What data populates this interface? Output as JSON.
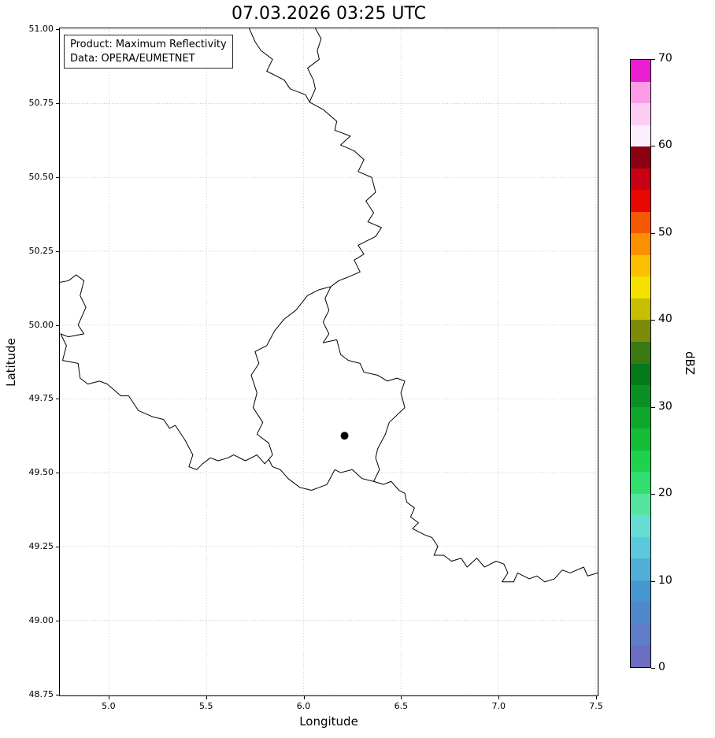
{
  "title": "07.03.2026 03:25 UTC",
  "annotation": {
    "line1": "Product: Maximum Reflectivity",
    "line2": "Data: OPERA/EUMETNET"
  },
  "chart_data": {
    "type": "map",
    "title": "07.03.2026 03:25 UTC",
    "xlabel": "Longitude",
    "ylabel": "Latitude",
    "xlim": [
      4.746,
      7.512
    ],
    "ylim": [
      48.745,
      51.005
    ],
    "grid": true,
    "xticks": [
      5.0,
      5.5,
      6.0,
      6.5,
      7.0,
      7.5
    ],
    "xtick_labels": [
      "5.0",
      "5.5",
      "6.0",
      "6.5",
      "7.0",
      "7.5"
    ],
    "yticks": [
      48.75,
      49.0,
      49.25,
      49.5,
      49.75,
      50.0,
      50.25,
      50.5,
      50.75,
      51.0
    ],
    "ytick_labels": [
      "48.75",
      "49.00",
      "49.25",
      "49.50",
      "49.75",
      "50.00",
      "50.25",
      "50.50",
      "50.75",
      "51.00"
    ],
    "marker": {
      "lon": 6.21,
      "lat": 49.625,
      "color": "#000000"
    },
    "border_color": "#000000",
    "borders": [
      {
        "name": "nl-be",
        "points": [
          [
            5.72,
            51.005
          ],
          [
            5.75,
            50.96
          ],
          [
            5.78,
            50.93
          ],
          [
            5.84,
            50.9
          ],
          [
            5.81,
            50.86
          ],
          [
            5.9,
            50.83
          ],
          [
            5.93,
            50.8
          ],
          [
            6.01,
            50.78
          ],
          [
            6.03,
            50.755
          ]
        ]
      },
      {
        "name": "nl-de",
        "points": [
          [
            6.03,
            50.755
          ],
          [
            6.06,
            50.8
          ],
          [
            6.05,
            50.83
          ],
          [
            6.02,
            50.87
          ],
          [
            6.08,
            50.9
          ],
          [
            6.07,
            50.93
          ],
          [
            6.09,
            50.97
          ],
          [
            6.06,
            51.005
          ]
        ]
      },
      {
        "name": "be-de",
        "points": [
          [
            6.03,
            50.755
          ],
          [
            6.1,
            50.73
          ],
          [
            6.17,
            50.69
          ],
          [
            6.16,
            50.66
          ],
          [
            6.24,
            50.64
          ],
          [
            6.19,
            50.61
          ],
          [
            6.26,
            50.59
          ],
          [
            6.31,
            50.56
          ],
          [
            6.28,
            50.52
          ],
          [
            6.35,
            50.5
          ],
          [
            6.37,
            50.45
          ],
          [
            6.32,
            50.42
          ],
          [
            6.36,
            50.38
          ],
          [
            6.33,
            50.35
          ],
          [
            6.4,
            50.33
          ],
          [
            6.37,
            50.3
          ],
          [
            6.28,
            50.27
          ],
          [
            6.31,
            50.24
          ],
          [
            6.26,
            50.22
          ],
          [
            6.29,
            50.18
          ],
          [
            6.22,
            50.16
          ],
          [
            6.18,
            50.15
          ],
          [
            6.14,
            50.13
          ]
        ]
      },
      {
        "name": "luxembourg",
        "points": [
          [
            6.14,
            50.13
          ],
          [
            6.11,
            50.09
          ],
          [
            6.13,
            50.05
          ],
          [
            6.1,
            50.01
          ],
          [
            6.13,
            49.97
          ],
          [
            6.1,
            49.94
          ],
          [
            6.17,
            49.95
          ],
          [
            6.19,
            49.9
          ],
          [
            6.23,
            49.88
          ],
          [
            6.29,
            49.87
          ],
          [
            6.31,
            49.84
          ],
          [
            6.38,
            49.83
          ],
          [
            6.43,
            49.81
          ],
          [
            6.48,
            49.82
          ],
          [
            6.52,
            49.81
          ],
          [
            6.5,
            49.77
          ],
          [
            6.52,
            49.72
          ],
          [
            6.44,
            49.67
          ],
          [
            6.42,
            49.63
          ],
          [
            6.38,
            49.58
          ],
          [
            6.37,
            49.55
          ],
          [
            6.39,
            49.51
          ],
          [
            6.36,
            49.47
          ],
          [
            6.3,
            49.48
          ],
          [
            6.25,
            49.51
          ],
          [
            6.19,
            49.5
          ],
          [
            6.16,
            49.51
          ],
          [
            6.12,
            49.46
          ],
          [
            6.08,
            49.45
          ],
          [
            6.04,
            49.44
          ],
          [
            5.98,
            49.45
          ],
          [
            5.92,
            49.48
          ],
          [
            5.88,
            49.51
          ],
          [
            5.84,
            49.52
          ],
          [
            5.82,
            49.545
          ],
          [
            5.84,
            49.56
          ],
          [
            5.82,
            49.6
          ],
          [
            5.76,
            49.63
          ],
          [
            5.79,
            49.67
          ],
          [
            5.74,
            49.72
          ],
          [
            5.76,
            49.77
          ],
          [
            5.73,
            49.83
          ],
          [
            5.77,
            49.87
          ],
          [
            5.75,
            49.91
          ],
          [
            5.81,
            49.93
          ],
          [
            5.85,
            49.98
          ],
          [
            5.9,
            50.02
          ],
          [
            5.96,
            50.05
          ],
          [
            6.02,
            50.1
          ],
          [
            6.08,
            50.12
          ],
          [
            6.14,
            50.13
          ]
        ]
      },
      {
        "name": "be-fr",
        "points": [
          [
            4.746,
            50.145
          ],
          [
            4.79,
            50.15
          ],
          [
            4.83,
            50.17
          ],
          [
            4.87,
            50.15
          ],
          [
            4.85,
            50.1
          ],
          [
            4.88,
            50.06
          ],
          [
            4.84,
            50.0
          ],
          [
            4.87,
            49.97
          ],
          [
            4.79,
            49.96
          ],
          [
            4.75,
            49.97
          ],
          [
            4.78,
            49.93
          ],
          [
            4.76,
            49.88
          ],
          [
            4.84,
            49.87
          ],
          [
            4.85,
            49.82
          ],
          [
            4.89,
            49.8
          ],
          [
            4.95,
            49.81
          ],
          [
            4.99,
            49.8
          ],
          [
            5.06,
            49.76
          ],
          [
            5.1,
            49.76
          ],
          [
            5.15,
            49.71
          ],
          [
            5.22,
            49.69
          ],
          [
            5.28,
            49.68
          ],
          [
            5.31,
            49.65
          ],
          [
            5.34,
            49.66
          ],
          [
            5.39,
            49.61
          ],
          [
            5.43,
            49.56
          ],
          [
            5.41,
            49.52
          ],
          [
            5.45,
            49.51
          ],
          [
            5.48,
            49.53
          ],
          [
            5.52,
            49.55
          ],
          [
            5.56,
            49.54
          ],
          [
            5.61,
            49.55
          ],
          [
            5.64,
            49.56
          ],
          [
            5.7,
            49.54
          ],
          [
            5.76,
            49.56
          ],
          [
            5.8,
            49.53
          ],
          [
            5.82,
            49.545
          ]
        ]
      },
      {
        "name": "fr-de",
        "points": [
          [
            6.36,
            49.47
          ],
          [
            6.41,
            49.46
          ],
          [
            6.45,
            49.47
          ],
          [
            6.49,
            49.44
          ],
          [
            6.52,
            49.43
          ],
          [
            6.53,
            49.4
          ],
          [
            6.57,
            49.38
          ],
          [
            6.55,
            49.35
          ],
          [
            6.59,
            49.33
          ],
          [
            6.56,
            49.31
          ],
          [
            6.62,
            49.29
          ],
          [
            6.66,
            49.28
          ],
          [
            6.69,
            49.25
          ],
          [
            6.67,
            49.22
          ],
          [
            6.72,
            49.22
          ],
          [
            6.76,
            49.2
          ],
          [
            6.81,
            49.21
          ],
          [
            6.84,
            49.18
          ],
          [
            6.89,
            49.21
          ],
          [
            6.93,
            49.18
          ],
          [
            6.99,
            49.2
          ],
          [
            7.03,
            49.19
          ],
          [
            7.05,
            49.16
          ],
          [
            7.02,
            49.13
          ],
          [
            7.08,
            49.13
          ],
          [
            7.1,
            49.16
          ],
          [
            7.16,
            49.14
          ],
          [
            7.2,
            49.15
          ],
          [
            7.24,
            49.13
          ],
          [
            7.29,
            49.14
          ],
          [
            7.33,
            49.17
          ],
          [
            7.37,
            49.16
          ],
          [
            7.44,
            49.18
          ],
          [
            7.46,
            49.15
          ],
          [
            7.512,
            49.16
          ]
        ]
      }
    ],
    "colorbar": {
      "label": "dBZ",
      "min": 0,
      "max": 70,
      "ticks": [
        0,
        10,
        20,
        30,
        40,
        50,
        60,
        70
      ],
      "tick_labels": [
        "0",
        "10",
        "20",
        "30",
        "40",
        "50",
        "60",
        "70"
      ],
      "colors_bottom_to_top": [
        "#6b6ec1",
        "#5f7dc6",
        "#5089ca",
        "#4697cf",
        "#4fafd7",
        "#5cc8dc",
        "#66dcd4",
        "#55e4a0",
        "#30dd6e",
        "#1fd24d",
        "#13bd36",
        "#0da82b",
        "#089122",
        "#047a1a",
        "#3a7a10",
        "#7e8b09",
        "#c8be00",
        "#f5e000",
        "#fcc000",
        "#fa9000",
        "#f55800",
        "#e80600",
        "#c80014",
        "#8c0014",
        "#fceefc",
        "#fcccf4",
        "#fc9ce8",
        "#ea1fd3"
      ]
    }
  }
}
